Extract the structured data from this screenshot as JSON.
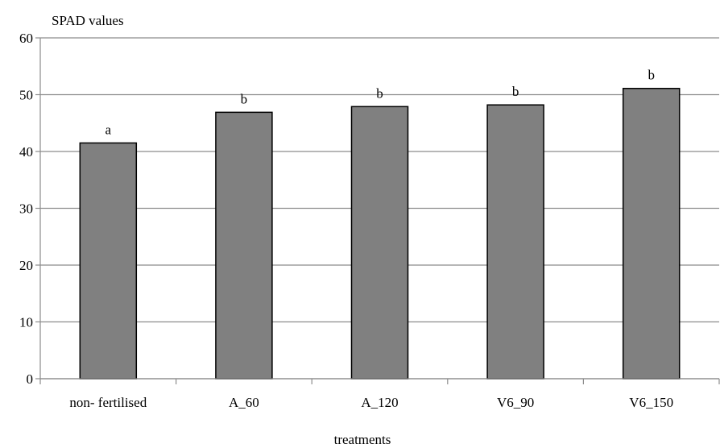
{
  "chart_data": {
    "type": "bar",
    "title": "",
    "ylabel": "SPAD values",
    "xlabel": "treatments",
    "categories": [
      "non- fertilised",
      "A_60",
      "A_120",
      "V6_90",
      "V6_150"
    ],
    "values": [
      41.5,
      46.9,
      47.9,
      48.2,
      51.1
    ],
    "data_labels": [
      "a",
      "b",
      "b",
      "b",
      "b"
    ],
    "ylim": [
      0,
      60
    ],
    "yticks": [
      0,
      10,
      20,
      30,
      40,
      50,
      60
    ],
    "grid": true,
    "colors": {
      "bar": "#808080",
      "bar_edge": "#000000",
      "grid": "#8c8c8c",
      "axis": "#8c8c8c"
    }
  }
}
